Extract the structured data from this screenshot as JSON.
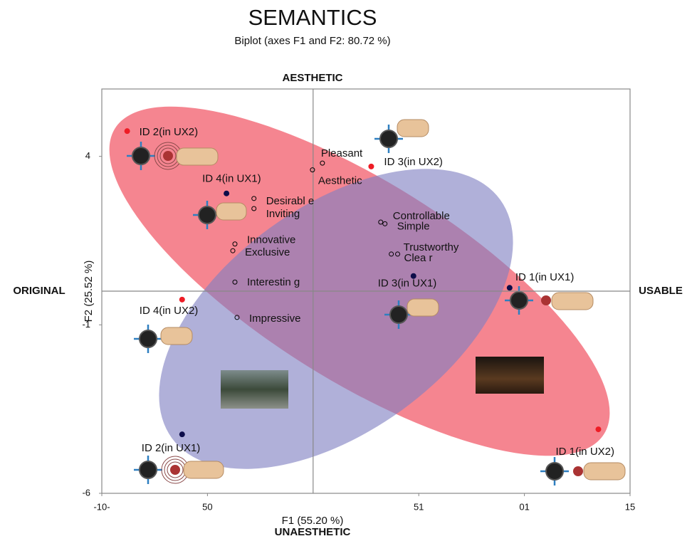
{
  "chart_data": {
    "type": "scatter",
    "title": "SEMANTICS",
    "subtitle": "Biplot (axes F1 and F2: 80.72 %)",
    "x_label": "F1 (55.20 %)",
    "y_label": "F2 (25.52 %)",
    "annotations": {
      "top": "AESTHETIC",
      "bottom": "UNAESTHETIC",
      "left": "ORIGINAL",
      "right": "USABLE"
    },
    "xlim": [
      -10,
      15
    ],
    "ylim": [
      -6,
      6
    ],
    "xticks": [
      {
        "value": -10,
        "label": "-10-"
      },
      {
        "value": -5,
        "label": "50"
      },
      {
        "value": 5,
        "label": "51"
      },
      {
        "value": 10,
        "label": "01"
      },
      15
    ],
    "yticks": [
      4,
      -1,
      -6
    ],
    "series": [
      {
        "marker": "open",
        "color": "#000000",
        "labels": [
          "Pleasant",
          "Aesthetic",
          "Desirabl e",
          "Inviting",
          "Innovative",
          "Exclusive",
          "Interestin g",
          "Impressive",
          "Controllable",
          "Simple",
          "Trustworthy",
          "Clea r"
        ],
        "x": [
          0.44,
          -0.03,
          -2.8,
          -2.8,
          -3.7,
          -3.8,
          -3.7,
          -3.6,
          3.2,
          3.4,
          3.7,
          4.0
        ],
        "values": [
          3.8,
          3.6,
          2.75,
          2.45,
          1.4,
          1.2,
          0.27,
          -0.78,
          2.05,
          2.0,
          1.1,
          1.1
        ]
      },
      {
        "marker": "filled",
        "color": "#ee1c25",
        "labels": [
          "ID 2(in UX2)",
          "ID 3(in UX2)",
          "ID 4(in UX2)",
          "ID 1(in UX2)"
        ],
        "x": [
          -8.8,
          2.75,
          -6.2,
          13.5
        ],
        "values": [
          4.75,
          3.7,
          -0.25,
          -4.1
        ]
      },
      {
        "marker": "filled",
        "color": "#0d0d4a",
        "labels": [
          "ID 4(in UX1)",
          "ID 3(in UX1)",
          "ID 1(in UX1)",
          "ID 2(in UX1)"
        ],
        "x": [
          -4.1,
          4.75,
          9.3,
          -6.2
        ],
        "values": [
          2.9,
          0.45,
          0.1,
          -4.25
        ]
      }
    ]
  }
}
